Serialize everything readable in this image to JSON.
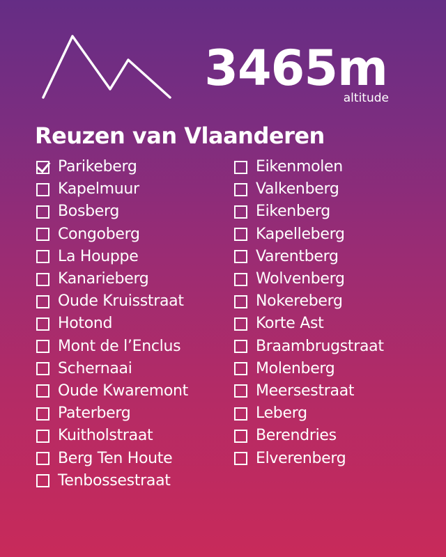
{
  "header": {
    "altitude_value": "3465m",
    "altitude_unit": "altitude",
    "logo_icon": "mountain-icon"
  },
  "title": "Reuzen van Vlaanderen",
  "colors": {
    "gradient_top": "#652d85",
    "gradient_bottom": "#c82a5a",
    "foreground": "#ffffff"
  },
  "checklist": {
    "left": [
      {
        "label": "Parikeberg",
        "checked": true
      },
      {
        "label": "Kapelmuur",
        "checked": false
      },
      {
        "label": "Bosberg",
        "checked": false
      },
      {
        "label": "Congoberg",
        "checked": false
      },
      {
        "label": "La Houppe",
        "checked": false
      },
      {
        "label": "Kanarieberg",
        "checked": false
      },
      {
        "label": "Oude Kruisstraat",
        "checked": false
      },
      {
        "label": "Hotond",
        "checked": false
      },
      {
        "label": "Mont de l’Enclus",
        "checked": false
      },
      {
        "label": "Schernaai",
        "checked": false
      },
      {
        "label": "Oude Kwaremont",
        "checked": false
      },
      {
        "label": "Paterberg",
        "checked": false
      },
      {
        "label": "Kuitholstraat",
        "checked": false
      },
      {
        "label": "Berg Ten Houte",
        "checked": false
      },
      {
        "label": "Tenbossestraat",
        "checked": false
      }
    ],
    "right": [
      {
        "label": "Eikenmolen",
        "checked": false
      },
      {
        "label": "Valkenberg",
        "checked": false
      },
      {
        "label": "Eikenberg",
        "checked": false
      },
      {
        "label": "Kapelleberg",
        "checked": false
      },
      {
        "label": "Varentberg",
        "checked": false
      },
      {
        "label": "Wolvenberg",
        "checked": false
      },
      {
        "label": "Nokereberg",
        "checked": false
      },
      {
        "label": "Korte Ast",
        "checked": false
      },
      {
        "label": "Braambrugstraat",
        "checked": false
      },
      {
        "label": "Molenberg",
        "checked": false
      },
      {
        "label": "Meersestraat",
        "checked": false
      },
      {
        "label": "Leberg",
        "checked": false
      },
      {
        "label": "Berendries",
        "checked": false
      },
      {
        "label": "Elverenberg",
        "checked": false
      }
    ]
  }
}
